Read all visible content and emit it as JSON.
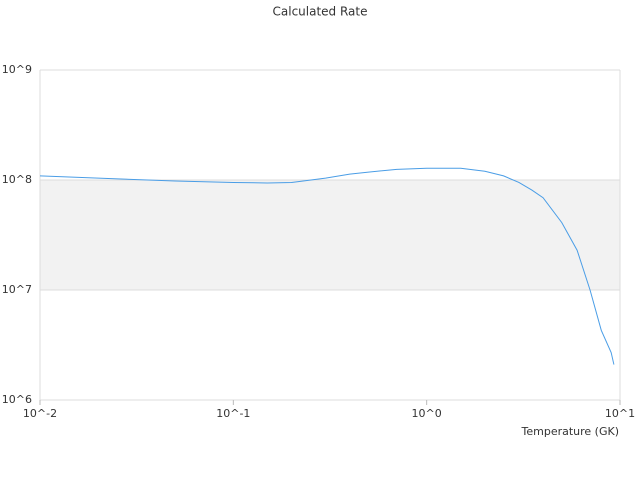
{
  "chart_data": {
    "type": "line",
    "title": "Calculated Rate",
    "x_label": "Temperature (GK)",
    "x": [
      0.01,
      0.02,
      0.05,
      0.1,
      0.15,
      0.2,
      0.3,
      0.4,
      0.5,
      0.7,
      1,
      1.5,
      2,
      2.5,
      3,
      3.5,
      4,
      5,
      6,
      7,
      8,
      9,
      9.3
    ],
    "series": [
      {
        "color": "#4a9de6",
        "values": [
          109000000,
          104000000,
          98000000,
          95000000,
          94000000,
          95000000,
          104000000,
          113000000,
          118000000,
          125000000,
          128000000,
          128000000,
          120000000,
          109000000,
          95000000,
          81000000,
          69000000,
          41000000,
          23000000,
          10000000,
          4300000,
          2700000,
          2100000
        ]
      }
    ],
    "xscale": "log",
    "yscale": "log",
    "xlim": [
      0.01,
      10
    ],
    "ylim": [
      1000000,
      1000000000
    ],
    "xticks": [
      {
        "value": 0.01,
        "label": "10^-2"
      },
      {
        "value": 0.1,
        "label": "10^-1"
      },
      {
        "value": 1,
        "label": "10^0"
      },
      {
        "value": 10,
        "label": "10^1"
      }
    ],
    "yticks": [
      {
        "value": 1000000,
        "label": "10^6"
      },
      {
        "value": 10000000,
        "label": "10^7"
      },
      {
        "value": 100000000,
        "label": "10^8"
      },
      {
        "value": 1000000000,
        "label": "10^9"
      }
    ],
    "grid": true,
    "band_color": "#f2f2f2"
  }
}
